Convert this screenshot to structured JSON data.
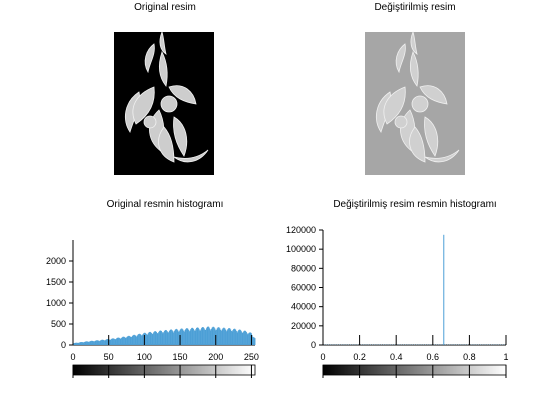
{
  "window": {
    "top_left_title": "Original resim",
    "top_right_title": "Değiştirilmiş resim"
  },
  "images": {
    "original_bg": "#000000",
    "modified_bg": "#a6a6a6"
  },
  "chart_data": [
    {
      "type": "bar",
      "title": "Original resmin histogramı",
      "xlim": [
        0,
        255
      ],
      "ylim": [
        0,
        2500
      ],
      "xticks": [
        "0",
        "50",
        "100",
        "150",
        "200",
        "250"
      ],
      "yticks": [
        "0",
        "500",
        "1000",
        "1500",
        "2000"
      ],
      "bar_color": "#4c9fd6",
      "values_profile": {
        "x": [
          0,
          10,
          20,
          30,
          40,
          50,
          60,
          70,
          80,
          90,
          100,
          110,
          120,
          130,
          140,
          150,
          160,
          170,
          180,
          190,
          200,
          210,
          220,
          230,
          240,
          250,
          255
        ],
        "y": [
          40,
          60,
          80,
          95,
          110,
          130,
          150,
          175,
          200,
          230,
          260,
          285,
          305,
          320,
          335,
          350,
          360,
          370,
          380,
          395,
          385,
          370,
          360,
          340,
          310,
          260,
          150
        ]
      },
      "colorbar": "grayscale 0-255"
    },
    {
      "type": "bar",
      "title": "Değiştirilmiş resim resmin histogramı",
      "xlim": [
        0,
        1
      ],
      "ylim": [
        0,
        120000
      ],
      "xticks": [
        "0",
        "0.2",
        "0.4",
        "0.6",
        "0.8",
        "1"
      ],
      "yticks": [
        "0",
        "20000",
        "40000",
        "60000",
        "80000",
        "100000",
        "120000"
      ],
      "bar_color": "#4c9fd6",
      "spike": {
        "x": 0.66,
        "value": 115000
      },
      "baseline_value": 400,
      "colorbar": "grayscale 0-1"
    }
  ]
}
